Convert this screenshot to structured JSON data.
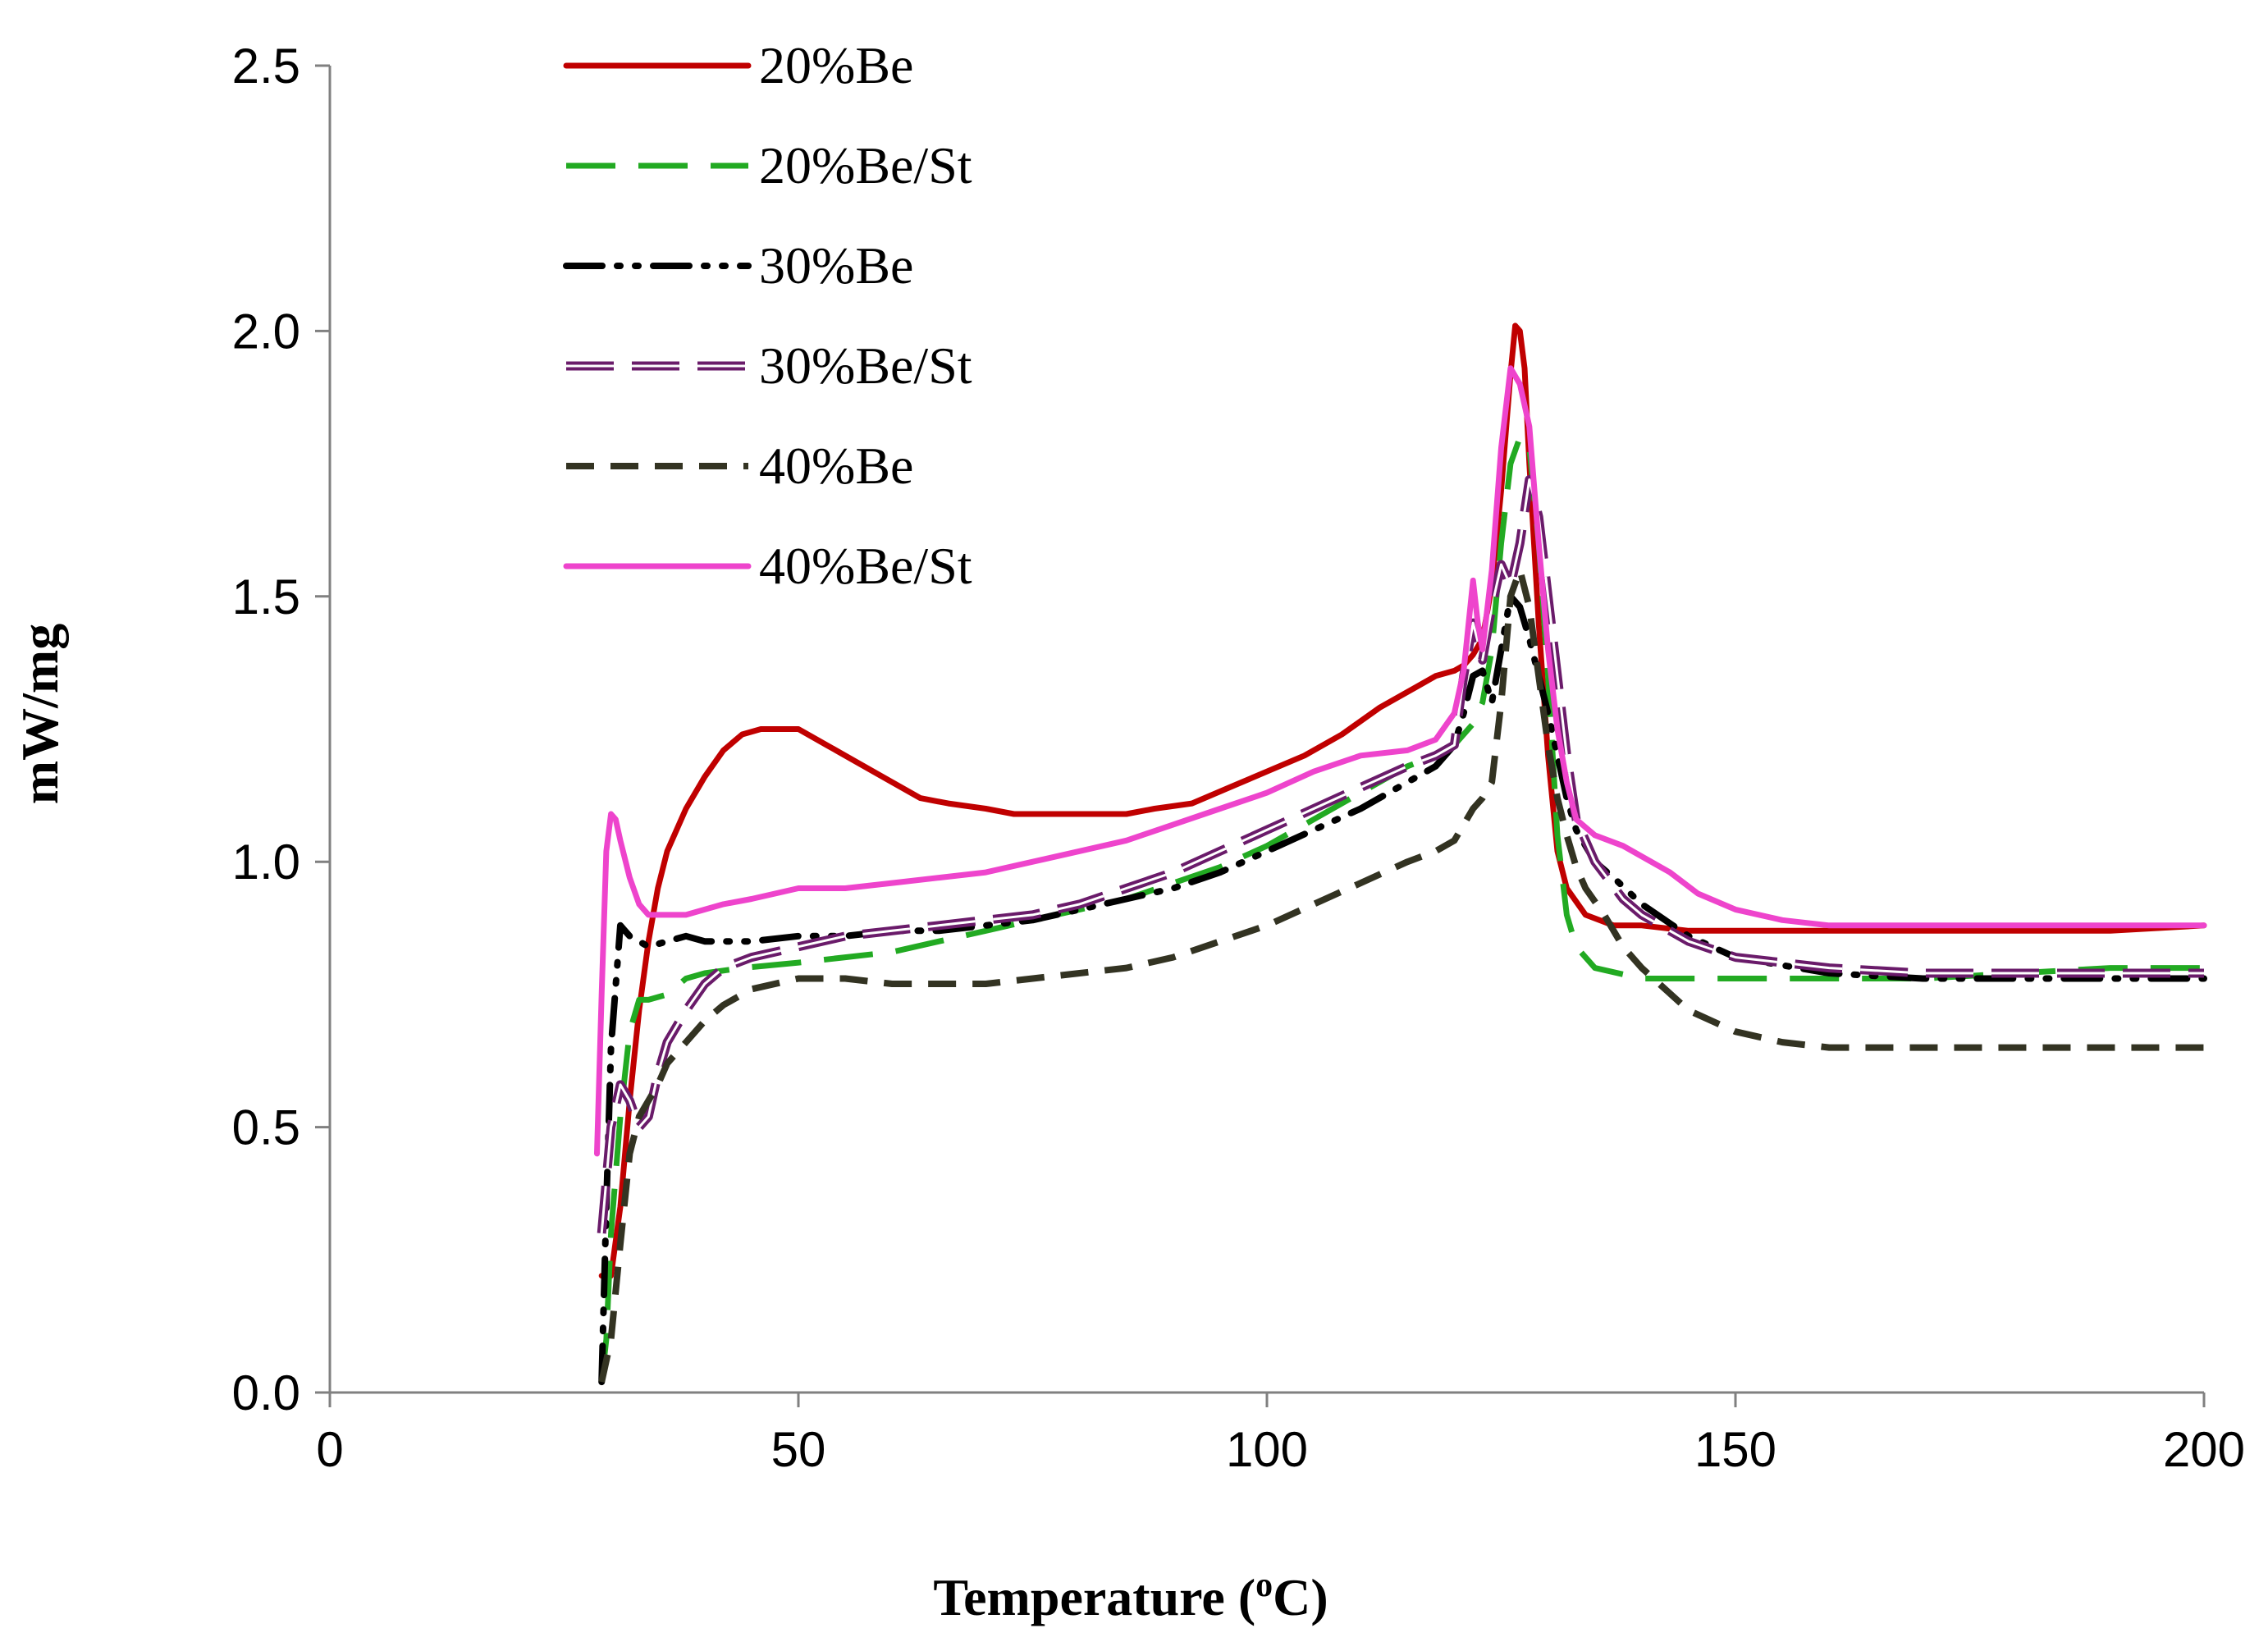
{
  "chart_data": {
    "type": "line",
    "title": "",
    "xlabel_main": "Temperature (",
    "xlabel_sup": "o",
    "xlabel_end": "C)",
    "ylabel": "mW/mg",
    "xlim": [
      0,
      200
    ],
    "ylim": [
      0,
      2.5
    ],
    "xticks": [
      0,
      50,
      100,
      150,
      200
    ],
    "xtick_labels": [
      "0",
      "50",
      "100",
      "150",
      "200"
    ],
    "yticks": [
      0,
      0.5,
      1.0,
      1.5,
      2.0,
      2.5
    ],
    "ytick_labels": [
      "0.0",
      "0.5",
      "1.0",
      "1.5",
      "2.0",
      "2.5"
    ],
    "grid": false,
    "legend_position": "top-left",
    "series": [
      {
        "name": "20%Be",
        "color": "#c00000",
        "style": "solid",
        "x": [
          29,
          30,
          31,
          32,
          33,
          34,
          35,
          36,
          38,
          40,
          42,
          44,
          46,
          48,
          50,
          53,
          56,
          60,
          63,
          66,
          70,
          73,
          76,
          80,
          85,
          88,
          92,
          96,
          100,
          104,
          108,
          112,
          116,
          118,
          120,
          121,
          122,
          123,
          124,
          125,
          126,
          126.5,
          127,
          127.5,
          128,
          129,
          130,
          131,
          132,
          134,
          137,
          140,
          145,
          150,
          160,
          170,
          180,
          190,
          200
        ],
        "y": [
          0.22,
          0.22,
          0.35,
          0.55,
          0.72,
          0.85,
          0.95,
          1.02,
          1.1,
          1.16,
          1.21,
          1.24,
          1.25,
          1.25,
          1.25,
          1.22,
          1.19,
          1.15,
          1.12,
          1.11,
          1.1,
          1.09,
          1.09,
          1.09,
          1.09,
          1.1,
          1.11,
          1.14,
          1.17,
          1.2,
          1.24,
          1.29,
          1.33,
          1.35,
          1.36,
          1.37,
          1.39,
          1.42,
          1.52,
          1.7,
          1.92,
          2.01,
          2.0,
          1.93,
          1.75,
          1.45,
          1.2,
          1.02,
          0.95,
          0.9,
          0.88,
          0.88,
          0.87,
          0.87,
          0.87,
          0.87,
          0.87,
          0.87,
          0.88
        ]
      },
      {
        "name": "20%Be/St",
        "color": "#22aa22",
        "style": "dash",
        "x": [
          29,
          29.5,
          30,
          31,
          32,
          33,
          34,
          36,
          38,
          40,
          44,
          50,
          55,
          60,
          65,
          70,
          75,
          80,
          85,
          90,
          95,
          100,
          105,
          110,
          115,
          118,
          120,
          122,
          123,
          124,
          125,
          126,
          127,
          128,
          129,
          130,
          131,
          132,
          133,
          135,
          140,
          145,
          150,
          160,
          170,
          180,
          190,
          200
        ],
        "y": [
          0.02,
          0.1,
          0.3,
          0.52,
          0.68,
          0.74,
          0.74,
          0.75,
          0.78,
          0.79,
          0.8,
          0.81,
          0.82,
          0.83,
          0.85,
          0.87,
          0.89,
          0.91,
          0.93,
          0.96,
          0.99,
          1.03,
          1.08,
          1.13,
          1.18,
          1.2,
          1.22,
          1.26,
          1.3,
          1.4,
          1.6,
          1.75,
          1.8,
          1.78,
          1.6,
          1.35,
          1.05,
          0.9,
          0.84,
          0.8,
          0.78,
          0.78,
          0.78,
          0.78,
          0.78,
          0.79,
          0.8,
          0.8
        ]
      },
      {
        "name": "30%Be",
        "color": "#000000",
        "style": "dashdot",
        "x": [
          29,
          29.5,
          30,
          31,
          32,
          34,
          36,
          38,
          40,
          45,
          50,
          55,
          60,
          65,
          70,
          75,
          80,
          85,
          90,
          95,
          100,
          105,
          110,
          115,
          118,
          120,
          121,
          122,
          123,
          124,
          125,
          126,
          127,
          128,
          129,
          130,
          131,
          132,
          133,
          135,
          137,
          140,
          145,
          150,
          160,
          170,
          180,
          190,
          200
        ],
        "y": [
          0.02,
          0.35,
          0.65,
          0.88,
          0.86,
          0.84,
          0.85,
          0.86,
          0.85,
          0.85,
          0.86,
          0.86,
          0.87,
          0.87,
          0.88,
          0.89,
          0.91,
          0.93,
          0.95,
          0.98,
          1.02,
          1.06,
          1.1,
          1.15,
          1.18,
          1.22,
          1.28,
          1.35,
          1.36,
          1.3,
          1.4,
          1.5,
          1.48,
          1.42,
          1.35,
          1.28,
          1.2,
          1.12,
          1.06,
          1.0,
          0.97,
          0.92,
          0.86,
          0.82,
          0.79,
          0.78,
          0.78,
          0.78,
          0.78
        ]
      },
      {
        "name": "30%Be/St",
        "color": "#6a1b6a",
        "style": "longdash",
        "x": [
          29,
          30,
          31,
          32,
          33,
          34,
          35,
          36,
          38,
          40,
          42,
          45,
          50,
          55,
          60,
          65,
          70,
          75,
          80,
          85,
          90,
          95,
          100,
          105,
          110,
          115,
          118,
          120,
          121,
          122,
          123,
          124,
          125,
          126,
          127,
          128,
          129,
          130,
          131,
          132,
          133,
          135,
          138,
          140,
          145,
          150,
          160,
          170,
          180,
          190,
          200
        ],
        "y": [
          0.3,
          0.5,
          0.58,
          0.55,
          0.5,
          0.52,
          0.6,
          0.66,
          0.72,
          0.77,
          0.8,
          0.82,
          0.84,
          0.86,
          0.87,
          0.88,
          0.89,
          0.9,
          0.92,
          0.95,
          0.98,
          1.02,
          1.06,
          1.1,
          1.14,
          1.18,
          1.2,
          1.22,
          1.35,
          1.45,
          1.38,
          1.48,
          1.56,
          1.52,
          1.6,
          1.72,
          1.65,
          1.5,
          1.35,
          1.2,
          1.08,
          1.0,
          0.93,
          0.9,
          0.85,
          0.82,
          0.8,
          0.79,
          0.79,
          0.79,
          0.79
        ]
      },
      {
        "name": "40%Be",
        "color": "#333322",
        "style": "shortdash",
        "x": [
          29,
          30,
          31,
          32,
          33,
          34,
          35,
          36,
          38,
          40,
          42,
          45,
          50,
          55,
          60,
          65,
          70,
          75,
          80,
          85,
          90,
          95,
          100,
          105,
          110,
          115,
          118,
          120,
          121,
          122,
          123,
          124,
          125,
          126,
          127,
          128,
          129,
          130,
          131,
          132,
          133,
          134,
          136,
          138,
          140,
          145,
          150,
          155,
          160,
          170,
          180,
          190,
          200
        ],
        "y": [
          0.02,
          0.1,
          0.28,
          0.45,
          0.52,
          0.55,
          0.58,
          0.62,
          0.66,
          0.7,
          0.73,
          0.76,
          0.78,
          0.78,
          0.77,
          0.77,
          0.77,
          0.78,
          0.79,
          0.8,
          0.82,
          0.85,
          0.88,
          0.92,
          0.96,
          1.0,
          1.02,
          1.04,
          1.07,
          1.1,
          1.12,
          1.15,
          1.3,
          1.5,
          1.55,
          1.48,
          1.35,
          1.22,
          1.12,
          1.05,
          0.99,
          0.95,
          0.9,
          0.84,
          0.8,
          0.72,
          0.68,
          0.66,
          0.65,
          0.65,
          0.65,
          0.65,
          0.65
        ]
      },
      {
        "name": "40%Be/St",
        "color": "#ee44cc",
        "style": "solid",
        "x": [
          28.5,
          29,
          29.5,
          30,
          30.5,
          31,
          32,
          33,
          34,
          35,
          36,
          38,
          40,
          42,
          45,
          50,
          55,
          60,
          65,
          70,
          75,
          80,
          85,
          90,
          95,
          100,
          105,
          110,
          115,
          118,
          120,
          121,
          122,
          122.5,
          123,
          124,
          125,
          126,
          127,
          128,
          129,
          130,
          131,
          132,
          133,
          135,
          138,
          140,
          143,
          146,
          150,
          155,
          160,
          170,
          180,
          190,
          200
        ],
        "y": [
          0.45,
          0.75,
          1.02,
          1.09,
          1.08,
          1.04,
          0.97,
          0.92,
          0.9,
          0.9,
          0.9,
          0.9,
          0.91,
          0.92,
          0.93,
          0.95,
          0.95,
          0.96,
          0.97,
          0.98,
          1.0,
          1.02,
          1.04,
          1.07,
          1.1,
          1.13,
          1.17,
          1.2,
          1.21,
          1.23,
          1.28,
          1.36,
          1.53,
          1.45,
          1.4,
          1.55,
          1.78,
          1.93,
          1.9,
          1.82,
          1.6,
          1.4,
          1.25,
          1.15,
          1.08,
          1.05,
          1.03,
          1.01,
          0.98,
          0.94,
          0.91,
          0.89,
          0.88,
          0.88,
          0.88,
          0.88,
          0.88
        ]
      }
    ]
  }
}
